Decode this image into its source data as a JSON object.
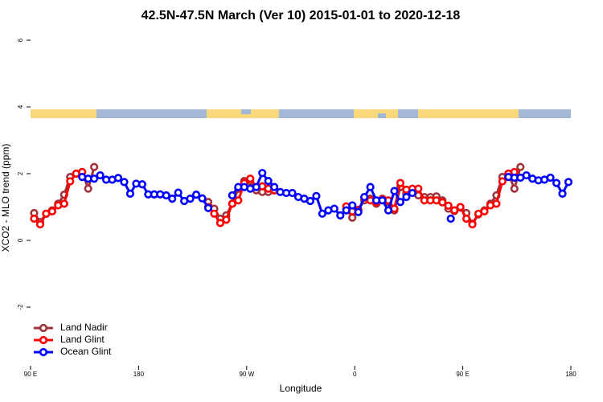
{
  "chart_data": {
    "type": "line",
    "title": "42.5N-47.5N March (Ver 10)   2015-01-01 to 2020-12-18",
    "x_label": "Longitude",
    "y_label": "XCO2 - MLO trend (ppm)",
    "xlim": [
      90,
      540
    ],
    "ylim": [
      -3.76,
      6.29
    ],
    "xticks": [
      {
        "value": 90,
        "label": "90 E"
      },
      180,
      {
        "value": 270,
        "label": "90 W"
      },
      {
        "value": 360,
        "label": "0"
      },
      {
        "value": 450,
        "label": "90 E"
      },
      {
        "value": 540,
        "label": "180"
      }
    ],
    "yticks": [
      -2,
      0,
      2,
      4,
      6
    ],
    "legend": "bottom-left",
    "series": [
      {
        "name": "Land Nadir",
        "color": "#a0323c",
        "x": [
          93,
          98,
          103,
          108,
          113,
          118,
          123,
          128,
          133,
          138,
          143,
          190,
          238,
          243,
          248,
          253,
          258,
          263,
          268,
          273,
          278,
          283,
          288,
          293,
          330,
          353,
          358,
          363,
          368,
          373,
          378,
          383,
          388,
          393,
          398,
          403,
          408,
          413,
          418,
          423,
          428,
          433,
          438,
          443,
          448,
          453,
          458,
          463,
          468,
          473,
          478,
          483,
          488,
          493,
          498
        ],
        "values": [
          0.82,
          0.55,
          0.8,
          0.9,
          1.1,
          1.37,
          1.9,
          2.0,
          2.05,
          1.55,
          2.2,
          null,
          1.15,
          0.95,
          0.65,
          0.75,
          1.1,
          1.55,
          1.78,
          1.78,
          1.5,
          1.45,
          1.45,
          1.5,
          null,
          0.95,
          0.68,
          0.92,
          1.2,
          1.25,
          1.1,
          1.25,
          1.15,
          0.9,
          1.6,
          1.4,
          1.45,
          1.35,
          1.3,
          1.3,
          1.32,
          1.2,
          0.95,
          0.88,
          0.98,
          0.82,
          0.5,
          0.78,
          0.9,
          1.1,
          1.35,
          1.9,
          2.0,
          1.55,
          2.2
        ]
      },
      {
        "name": "Land Glint",
        "color": "#ff0000",
        "x": [
          93,
          98,
          103,
          108,
          113,
          118,
          123,
          128,
          133,
          190,
          238,
          243,
          248,
          253,
          258,
          263,
          268,
          273,
          278,
          283,
          288,
          293,
          330,
          353,
          358,
          363,
          368,
          373,
          378,
          383,
          388,
          393,
          398,
          403,
          408,
          413,
          418,
          423,
          428,
          433,
          438,
          443,
          448,
          453,
          458,
          463,
          468,
          473,
          478,
          483,
          488,
          493
        ],
        "values": [
          0.65,
          0.48,
          0.8,
          0.87,
          1.05,
          1.1,
          1.77,
          2.0,
          2.05,
          null,
          1.0,
          0.8,
          0.52,
          0.62,
          1.1,
          1.2,
          1.72,
          1.85,
          1.6,
          1.62,
          1.55,
          1.5,
          null,
          1.02,
          0.87,
          0.9,
          1.28,
          1.2,
          1.14,
          1.23,
          1.2,
          0.95,
          1.72,
          1.52,
          1.55,
          1.55,
          1.2,
          1.2,
          1.2,
          1.14,
          1.04,
          0.9,
          1.0,
          0.65,
          0.48,
          0.8,
          0.87,
          1.05,
          1.1,
          1.77,
          2.0,
          2.05
        ]
      },
      {
        "name": "Ocean Glint",
        "color": "#0000ff",
        "x": [
          133,
          138,
          143,
          148,
          153,
          158,
          163,
          168,
          173,
          178,
          183,
          188,
          193,
          198,
          203,
          208,
          213,
          218,
          223,
          228,
          233,
          238,
          248,
          258,
          263,
          268,
          273,
          278,
          283,
          288,
          293,
          298,
          303,
          308,
          313,
          318,
          323,
          328,
          333,
          338,
          343,
          348,
          353,
          358,
          363,
          368,
          373,
          378,
          383,
          388,
          393,
          398,
          403,
          408,
          423,
          440,
          463,
          488,
          493,
          498,
          503,
          508,
          513,
          518,
          523,
          528,
          533,
          538
        ],
        "values": [
          1.9,
          1.85,
          1.85,
          1.95,
          1.82,
          1.82,
          1.87,
          1.75,
          1.4,
          1.7,
          1.68,
          1.38,
          1.38,
          1.38,
          1.35,
          1.25,
          1.43,
          1.18,
          1.25,
          1.37,
          1.26,
          0.97,
          null,
          1.35,
          1.6,
          1.6,
          1.55,
          1.6,
          2.02,
          1.78,
          1.6,
          1.45,
          1.42,
          1.42,
          1.3,
          1.25,
          1.18,
          1.33,
          0.8,
          0.9,
          0.95,
          0.75,
          0.9,
          1.05,
          0.85,
          1.3,
          1.6,
          1.2,
          1.2,
          0.9,
          1.48,
          1.15,
          1.3,
          1.42,
          null,
          0.65,
          null,
          1.9,
          1.88,
          1.88,
          1.95,
          1.85,
          1.8,
          1.82,
          1.88,
          1.72,
          1.4,
          1.75
        ]
      }
    ]
  }
}
